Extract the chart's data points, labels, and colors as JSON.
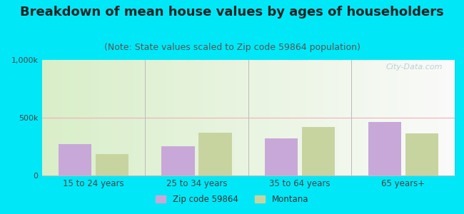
{
  "title": "Breakdown of mean house values by ages of householders",
  "subtitle": "(Note: State values scaled to Zip code 59864 population)",
  "categories": [
    "15 to 24 years",
    "25 to 34 years",
    "35 to 64 years",
    "65 years+"
  ],
  "zip_values": [
    270000,
    255000,
    320000,
    460000
  ],
  "montana_values": [
    185000,
    370000,
    420000,
    365000
  ],
  "zip_color": "#c8a8d8",
  "montana_color": "#c8d4a0",
  "background_outer": "#00e8f8",
  "ylim": [
    0,
    1000000
  ],
  "ytick_labels": [
    "0",
    "500k",
    "1,000k"
  ],
  "legend_zip_label": "Zip code 59864",
  "legend_montana_label": "Montana",
  "title_fontsize": 13,
  "subtitle_fontsize": 9,
  "bar_width": 0.32,
  "watermark": "City-Data.com"
}
